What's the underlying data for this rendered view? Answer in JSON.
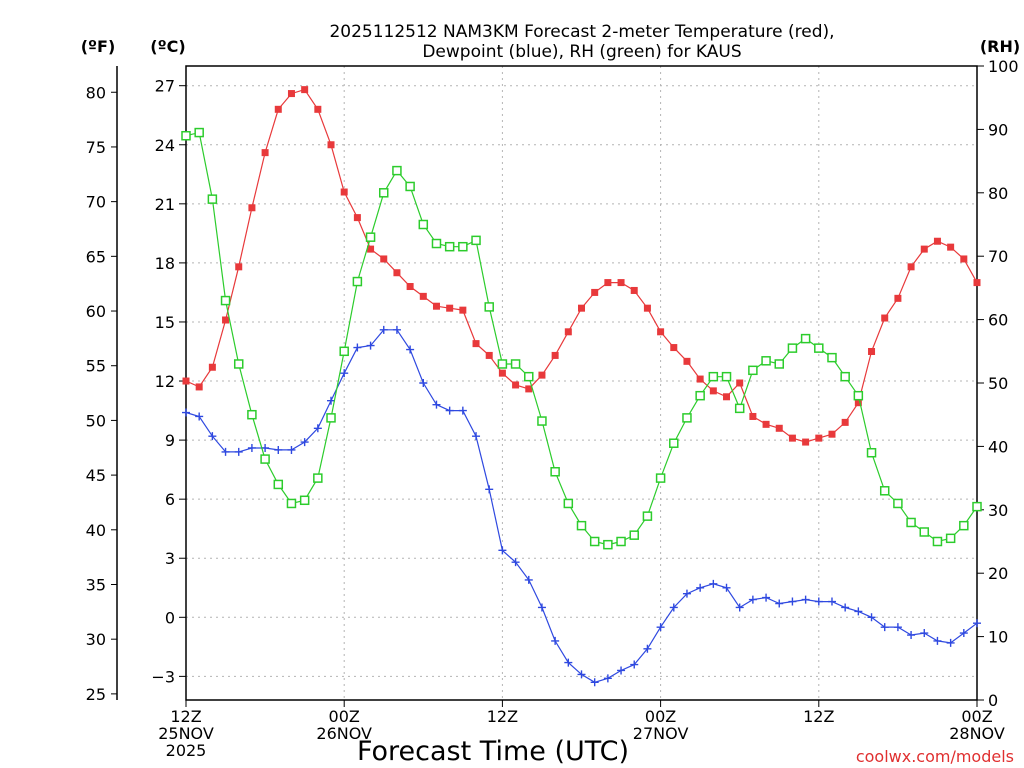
{
  "chart_data": {
    "type": "line",
    "title_line1": "2025112512 NAM3KM Forecast 2-meter Temperature (red),",
    "title_line2": "Dewpoint (blue), RH (green) for KAUS",
    "xlabel": "Forecast Time (UTC)",
    "watermark": "coolwx.com/models",
    "unit_labels": {
      "f": "(ºF)",
      "c": "(ºC)",
      "rh": "(RH)"
    },
    "x_range_hours": [
      0,
      60
    ],
    "c_axis": {
      "range": [
        -4.2,
        28.0
      ],
      "ticks": [
        -3,
        0,
        3,
        6,
        9,
        12,
        15,
        18,
        21,
        24,
        27
      ]
    },
    "f_axis": {
      "range": [
        24.44,
        82.4
      ],
      "ticks": [
        25,
        30,
        35,
        40,
        45,
        50,
        55,
        60,
        65,
        70,
        75,
        80
      ]
    },
    "rh_axis": {
      "range": [
        0,
        100
      ],
      "ticks": [
        0,
        10,
        20,
        30,
        40,
        50,
        60,
        70,
        80,
        90,
        100
      ]
    },
    "x_ticks": [
      {
        "hour": 0,
        "line1": "12Z",
        "line2": "25NOV",
        "line3": "2025"
      },
      {
        "hour": 12,
        "line1": "00Z",
        "line2": "26NOV",
        "line3": ""
      },
      {
        "hour": 24,
        "line1": "12Z",
        "line2": "",
        "line3": ""
      },
      {
        "hour": 36,
        "line1": "00Z",
        "line2": "27NOV",
        "line3": ""
      },
      {
        "hour": 48,
        "line1": "12Z",
        "line2": "",
        "line3": ""
      },
      {
        "hour": 60,
        "line1": "00Z",
        "line2": "28NOV",
        "line3": ""
      }
    ],
    "series": [
      {
        "name": "Temperature",
        "color": "#e8393b",
        "unit": "C",
        "marker": "filled-square",
        "values": [
          12.0,
          11.7,
          12.7,
          15.1,
          17.8,
          20.8,
          23.6,
          25.8,
          26.6,
          26.8,
          25.8,
          24.0,
          21.6,
          20.3,
          18.7,
          18.2,
          17.5,
          16.8,
          16.3,
          15.8,
          15.7,
          15.6,
          13.9,
          13.3,
          12.4,
          11.8,
          11.6,
          12.3,
          13.3,
          14.5,
          15.7,
          16.5,
          17.0,
          17.0,
          16.6,
          15.7,
          14.5,
          13.7,
          13.0,
          12.1,
          11.5,
          11.2,
          11.9,
          10.2,
          9.8,
          9.6,
          9.1,
          8.9,
          9.1,
          9.3,
          9.9,
          10.9,
          13.5,
          15.2,
          16.2,
          17.8,
          18.7,
          19.1,
          18.8,
          18.2,
          17.0
        ]
      },
      {
        "name": "Dewpoint",
        "color": "#2f49e0",
        "unit": "C",
        "marker": "plus",
        "values": [
          10.4,
          10.2,
          9.2,
          8.4,
          8.4,
          8.6,
          8.6,
          8.5,
          8.5,
          8.9,
          9.6,
          11.0,
          12.4,
          13.7,
          13.8,
          14.6,
          14.6,
          13.6,
          11.9,
          10.8,
          10.5,
          10.5,
          9.2,
          6.5,
          3.4,
          2.8,
          1.9,
          0.5,
          -1.2,
          -2.3,
          -2.9,
          -3.3,
          -3.1,
          -2.7,
          -2.4,
          -1.6,
          -0.5,
          0.5,
          1.2,
          1.5,
          1.7,
          1.5,
          0.5,
          0.9,
          1.0,
          0.7,
          0.8,
          0.9,
          0.8,
          0.8,
          0.5,
          0.3,
          0.0,
          -0.5,
          -0.5,
          -0.9,
          -0.8,
          -1.2,
          -1.3,
          -0.8,
          -0.3
        ]
      },
      {
        "name": "RH",
        "color": "#2ccc2c",
        "unit": "RH",
        "marker": "open-square",
        "values": [
          89,
          89.5,
          79,
          63,
          53,
          45,
          38,
          34,
          31,
          31.5,
          35,
          44.5,
          55,
          66,
          73,
          80,
          83.5,
          81,
          75,
          72,
          71.5,
          71.5,
          72.5,
          62,
          53,
          53,
          51,
          44,
          36,
          31,
          27.5,
          25,
          24.5,
          25,
          26,
          29,
          35,
          40.5,
          44.5,
          48,
          51,
          51,
          46,
          52,
          53.5,
          53,
          55.5,
          57,
          55.5,
          54,
          51,
          48,
          39,
          33,
          31,
          28,
          26.5,
          25,
          25.5,
          27.5,
          30.5
        ]
      }
    ]
  }
}
